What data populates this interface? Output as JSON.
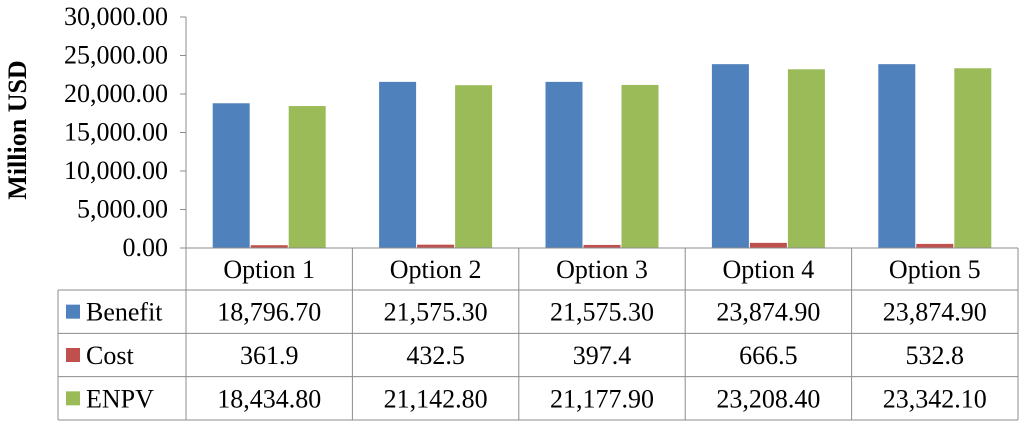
{
  "chart_data": {
    "type": "bar",
    "title": "",
    "xlabel": "",
    "ylabel": "Million USD",
    "ylim": [
      0,
      30000
    ],
    "yticks": [
      "0.00",
      "5,000.00",
      "10,000.00",
      "15,000.00",
      "20,000.00",
      "25,000.00",
      "30,000.00"
    ],
    "categories": [
      "Option 1",
      "Option 2",
      "Option 3",
      "Option 4",
      "Option 5"
    ],
    "grid": false,
    "legend": "data-table",
    "series": [
      {
        "name": "Benefit",
        "color": "#4F81BD",
        "values": [
          18796.7,
          21575.3,
          21575.3,
          23874.9,
          23874.9
        ],
        "labels": [
          "18,796.70",
          "21,575.30",
          "21,575.30",
          "23,874.90",
          "23,874.90"
        ]
      },
      {
        "name": "Cost",
        "color": "#C0504D",
        "values": [
          361.9,
          432.5,
          397.4,
          666.5,
          532.8
        ],
        "labels": [
          "361.9",
          "432.5",
          "397.4",
          "666.5",
          "532.8"
        ]
      },
      {
        "name": "ENPV",
        "color": "#9BBB59",
        "values": [
          18434.8,
          21142.8,
          21177.9,
          23208.4,
          23342.1
        ],
        "labels": [
          "18,434.80",
          "21,142.80",
          "21,177.90",
          "23,208.40",
          "23,342.10"
        ]
      }
    ]
  }
}
